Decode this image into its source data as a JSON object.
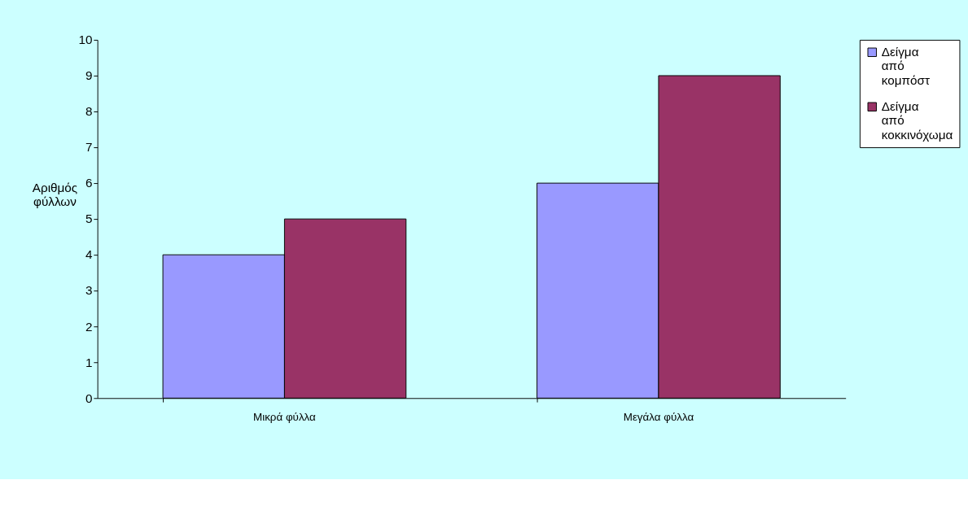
{
  "chart_data": {
    "type": "bar",
    "ylabel": "Αριθμός φύλλων",
    "categories": [
      "Μικρά φύλλα",
      "Μεγάλα φύλλα"
    ],
    "series": [
      {
        "name": "Δείγμα από κομπόστ",
        "color": "#9999ff",
        "values": [
          4,
          6
        ]
      },
      {
        "name": "Δείγμα από κοκκινόχωμα",
        "color": "#993366",
        "values": [
          5,
          9
        ]
      }
    ],
    "ylim": [
      0,
      10
    ],
    "yticks": [
      0,
      1,
      2,
      3,
      4,
      5,
      6,
      7,
      8,
      9,
      10
    ],
    "grid": false,
    "legend": "right"
  }
}
